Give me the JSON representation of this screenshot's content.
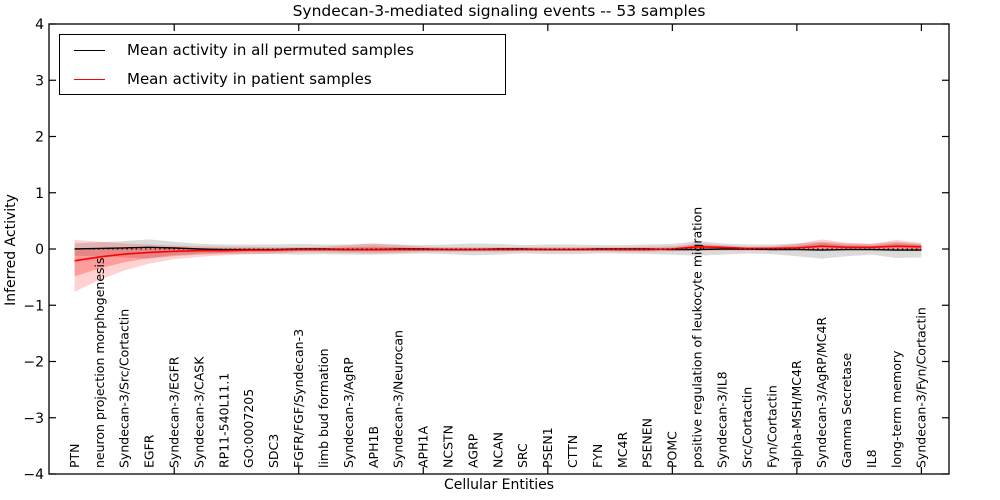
{
  "title": "Syndecan-3-mediated signaling events -- 53 samples",
  "axes": {
    "ylabel": "Inferred Activity",
    "xlabel": "Cellular Entities"
  },
  "legend": {
    "items": [
      {
        "label": "Mean activity in all permuted samples",
        "color": "#000000"
      },
      {
        "label": "Mean activity in patient samples",
        "color": "#ff0000"
      }
    ]
  },
  "chart_data": {
    "type": "line",
    "title": "Syndecan-3-mediated signaling events -- 53 samples",
    "xlabel": "Cellular Entities",
    "ylabel": "Inferred Activity",
    "ylim": [
      -4,
      4
    ],
    "yticks": [
      4,
      3,
      2,
      1,
      0,
      -1,
      -2,
      -3,
      -4
    ],
    "xtick_indices": [
      4,
      9,
      14,
      19,
      24,
      29,
      34
    ],
    "grid": false,
    "legend_position": "upper left",
    "zero_line": true,
    "categories": [
      "PTN",
      "neuron projection morphogenesis",
      "Syndecan-3/Src/Cortactin",
      "EGFR",
      "Syndecan-3/EGFR",
      "Syndecan-3/CASK",
      "RP11-540L11.1",
      "GO:0007205",
      "SDC3",
      "FGFR/FGF/Syndecan-3",
      "limb bud formation",
      "Syndecan-3/AgRP",
      "APH1B",
      "Syndecan-3/Neurocan",
      "APH1A",
      "NCSTN",
      "AGRP",
      "NCAN",
      "SRC",
      "PSEN1",
      "CTTN",
      "FYN",
      "MC4R",
      "PSENEN",
      "POMC",
      "positive regulation of leukocyte migration",
      "Syndecan-3/IL8",
      "Src/Cortactin",
      "Fyn/Cortactin",
      "alpha-MSH/MC4R",
      "Syndecan-3/AgRP/MC4R",
      "Gamma Secretase",
      "IL8",
      "long-term memory",
      "Syndecan-3/Fyn/Cortactin"
    ],
    "series": [
      {
        "name": "Mean activity in all permuted samples",
        "color": "#000000",
        "band_fill": "rgba(0,0,0,0.14)",
        "inner_band_fraction": null,
        "values": [
          0.0,
          0.01,
          0.02,
          0.03,
          0.02,
          0.0,
          -0.01,
          -0.01,
          -0.01,
          0.0,
          0.0,
          -0.01,
          -0.01,
          0.0,
          0.0,
          -0.01,
          -0.01,
          0.0,
          0.0,
          -0.01,
          -0.01,
          0.0,
          0.0,
          0.0,
          -0.01,
          -0.01,
          0.0,
          0.0,
          -0.01,
          -0.01,
          -0.02,
          -0.01,
          -0.01,
          -0.02,
          -0.02
        ],
        "band_upper": [
          0.1,
          0.12,
          0.14,
          0.17,
          0.13,
          0.09,
          0.08,
          0.08,
          0.08,
          0.09,
          0.08,
          0.08,
          0.09,
          0.08,
          0.07,
          0.08,
          0.1,
          0.09,
          0.07,
          0.08,
          0.08,
          0.07,
          0.07,
          0.08,
          0.09,
          0.14,
          0.1,
          0.08,
          0.08,
          0.1,
          0.13,
          0.1,
          0.09,
          0.13,
          0.09
        ],
        "band_lower": [
          -0.12,
          -0.13,
          -0.15,
          -0.17,
          -0.13,
          -0.1,
          -0.09,
          -0.09,
          -0.09,
          -0.1,
          -0.09,
          -0.1,
          -0.1,
          -0.09,
          -0.08,
          -0.09,
          -0.11,
          -0.1,
          -0.08,
          -0.09,
          -0.09,
          -0.08,
          -0.08,
          -0.09,
          -0.1,
          -0.12,
          -0.1,
          -0.08,
          -0.09,
          -0.13,
          -0.17,
          -0.13,
          -0.1,
          -0.16,
          -0.15
        ]
      },
      {
        "name": "Mean activity in patient samples",
        "color": "#ff0000",
        "band_fill": "rgba(255,0,0,0.18)",
        "inner_band_fraction": 0.5,
        "inner_band_fill": "rgba(255,0,0,0.25)",
        "values": [
          -0.21,
          -0.14,
          -0.09,
          -0.06,
          -0.04,
          -0.03,
          -0.03,
          -0.02,
          -0.02,
          -0.01,
          -0.01,
          -0.01,
          -0.01,
          -0.01,
          -0.01,
          -0.01,
          -0.01,
          -0.01,
          -0.01,
          -0.01,
          -0.01,
          -0.01,
          -0.01,
          -0.01,
          0.0,
          0.04,
          0.03,
          0.01,
          0.01,
          0.02,
          0.05,
          0.03,
          0.03,
          0.05,
          0.04
        ],
        "band_upper": [
          0.16,
          0.13,
          0.1,
          0.08,
          0.06,
          0.05,
          0.04,
          0.04,
          0.03,
          0.03,
          0.04,
          0.07,
          0.1,
          0.07,
          0.04,
          0.03,
          0.03,
          0.03,
          0.03,
          0.03,
          0.03,
          0.03,
          0.03,
          0.04,
          0.05,
          0.1,
          0.07,
          0.04,
          0.05,
          0.09,
          0.17,
          0.11,
          0.09,
          0.16,
          0.11
        ],
        "band_lower": [
          -0.76,
          -0.55,
          -0.38,
          -0.26,
          -0.18,
          -0.14,
          -0.11,
          -0.09,
          -0.08,
          -0.06,
          -0.06,
          -0.07,
          -0.08,
          -0.07,
          -0.05,
          -0.05,
          -0.05,
          -0.05,
          -0.04,
          -0.04,
          -0.04,
          -0.04,
          -0.05,
          -0.05,
          -0.04,
          -0.03,
          -0.03,
          -0.03,
          -0.03,
          -0.02,
          -0.02,
          -0.02,
          -0.02,
          -0.03,
          -0.04
        ]
      }
    ]
  }
}
